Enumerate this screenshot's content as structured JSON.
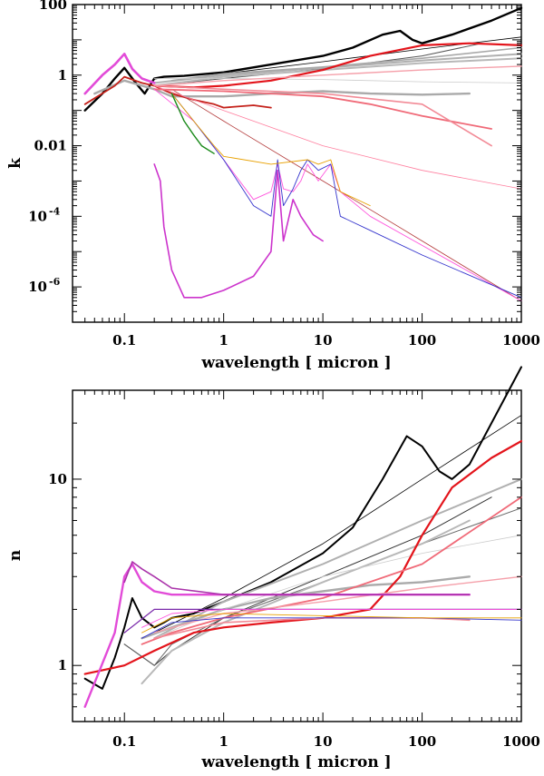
{
  "chart_data": [
    {
      "type": "line",
      "scale": {
        "x": "log",
        "y": "log"
      },
      "xlabel": "wavelength [ micron ]",
      "ylabel": "k",
      "xlim": [
        0.03,
        1000
      ],
      "ylim": [
        1e-07,
        100
      ],
      "xticks": [
        {
          "v": 0.1,
          "label": "0.1"
        },
        {
          "v": 1,
          "label": "1"
        },
        {
          "v": 10,
          "label": "10"
        },
        {
          "v": 100,
          "label": "100"
        },
        {
          "v": 1000,
          "label": "1000"
        }
      ],
      "yticks": [
        {
          "v": 100,
          "label": "100",
          "type": "plain"
        },
        {
          "v": 1,
          "label": "1",
          "type": "plain"
        },
        {
          "v": 0.01,
          "label": "0.01",
          "type": "plain"
        },
        {
          "v": 0.0001,
          "label": "10",
          "sup": "-4",
          "type": "pow"
        },
        {
          "v": 1e-06,
          "label": "10",
          "sup": "-6",
          "type": "pow"
        }
      ],
      "series": [
        {
          "color": "#000000",
          "width": 2.4,
          "x": [
            0.04,
            0.06,
            0.08,
            0.1,
            0.13,
            0.16,
            0.2,
            0.25,
            0.4,
            1,
            3,
            10,
            20,
            40,
            60,
            80,
            100,
            200,
            500,
            1000
          ],
          "y": [
            0.1,
            0.3,
            0.8,
            1.6,
            0.6,
            0.3,
            0.8,
            0.9,
            0.95,
            1.2,
            2,
            3.5,
            6,
            14,
            18,
            10,
            8,
            14,
            35,
            80
          ]
        },
        {
          "color": "#000000",
          "width": 0.8,
          "x": [
            0.2,
            1,
            10,
            100,
            1000
          ],
          "y": [
            0.6,
            1.1,
            2.4,
            5.5,
            12
          ]
        },
        {
          "color": "#555555",
          "width": 1,
          "x": [
            0.2,
            1,
            10,
            100,
            400
          ],
          "y": [
            0.5,
            0.8,
            1.5,
            3.5,
            8
          ]
        },
        {
          "color": "#aaaaaa",
          "width": 2.4,
          "x": [
            0.05,
            0.1,
            0.2,
            0.3,
            0.5,
            1,
            3,
            10,
            30,
            100,
            300
          ],
          "y": [
            0.3,
            0.7,
            0.4,
            0.25,
            0.25,
            0.25,
            0.3,
            0.35,
            0.3,
            0.28,
            0.3
          ]
        },
        {
          "color": "#b0b0b0",
          "width": 2,
          "x": [
            0.2,
            1,
            10,
            100,
            1000
          ],
          "y": [
            0.6,
            1,
            1.6,
            2.6,
            4
          ]
        },
        {
          "color": "#b8b8b8",
          "width": 2,
          "x": [
            0.2,
            1,
            10,
            100,
            1000
          ],
          "y": [
            0.5,
            0.9,
            1.4,
            2.2,
            3
          ]
        },
        {
          "color": "#a8a8a8",
          "width": 1.6,
          "x": [
            0.3,
            1,
            10,
            100,
            1000
          ],
          "y": [
            0.7,
            1.1,
            1.7,
            3,
            6
          ]
        },
        {
          "color": "#cccccc",
          "width": 0.8,
          "x": [
            0.2,
            1,
            10,
            100,
            1000
          ],
          "y": [
            0.8,
            0.8,
            0.75,
            0.65,
            0.6
          ]
        },
        {
          "color": "#e3141b",
          "width": 2.2,
          "x": [
            0.2,
            0.5,
            1,
            3,
            10,
            30,
            100,
            300,
            1000
          ],
          "y": [
            0.5,
            0.45,
            0.5,
            0.7,
            1.4,
            3.5,
            7,
            8,
            7
          ]
        },
        {
          "color": "#c4211a",
          "width": 1.8,
          "x": [
            0.04,
            0.08,
            0.1,
            0.15,
            0.2,
            0.3,
            0.5,
            0.8,
            1,
            2,
            3
          ],
          "y": [
            0.15,
            0.5,
            0.9,
            0.6,
            0.5,
            0.3,
            0.2,
            0.15,
            0.12,
            0.14,
            0.12
          ]
        },
        {
          "color": "#b33a3a",
          "width": 0.8,
          "x": [
            0.3,
            1,
            10,
            100,
            1000
          ],
          "y": [
            0.4,
            0.05,
            0.001,
            2e-05,
            4e-07
          ]
        },
        {
          "color": "#f06a78",
          "width": 1.8,
          "x": [
            0.2,
            1,
            3,
            10,
            30,
            100,
            500
          ],
          "y": [
            0.4,
            0.35,
            0.3,
            0.25,
            0.15,
            0.07,
            0.03
          ]
        },
        {
          "color": "#f28a96",
          "width": 1.6,
          "x": [
            0.2,
            1,
            10,
            100,
            500
          ],
          "y": [
            0.5,
            0.4,
            0.3,
            0.15,
            0.01
          ]
        },
        {
          "color": "#f5a0aa",
          "width": 1.4,
          "x": [
            0.2,
            1,
            10,
            100,
            1000
          ],
          "y": [
            0.5,
            0.7,
            1,
            1.4,
            1.8
          ]
        },
        {
          "color": "#ff7f9f",
          "width": 0.8,
          "x": [
            0.2,
            1,
            10,
            100,
            1000
          ],
          "y": [
            0.5,
            0.1,
            0.01,
            0.002,
            0.0006
          ]
        },
        {
          "color": "#e24bd8",
          "width": 2.6,
          "x": [
            0.04,
            0.06,
            0.08,
            0.1,
            0.12,
            0.15,
            0.2
          ],
          "y": [
            0.3,
            1,
            2,
            4,
            1.5,
            0.8,
            0.6
          ]
        },
        {
          "color": "#cc33cc",
          "width": 1.6,
          "x": [
            0.2,
            0.23,
            0.25,
            0.3,
            0.4,
            0.6,
            1,
            2,
            3,
            3.5,
            4,
            5,
            6,
            8,
            10
          ],
          "y": [
            0.003,
            0.001,
            5e-05,
            3e-06,
            5e-07,
            5e-07,
            8e-07,
            2e-06,
            1e-05,
            0.002,
            2e-05,
            0.0003,
            0.0001,
            3e-05,
            2e-05
          ]
        },
        {
          "color": "#ff55dd",
          "width": 0.9,
          "x": [
            0.2,
            0.5,
            1,
            2,
            3,
            3.5,
            4,
            5,
            6,
            7,
            9,
            12,
            15,
            30,
            100,
            1000
          ],
          "y": [
            0.4,
            0.05,
            0.004,
            0.0003,
            0.0005,
            0.003,
            0.0006,
            0.0005,
            0.001,
            0.003,
            0.001,
            0.003,
            0.0005,
            0.0001,
            1.5e-05,
            4e-07
          ]
        },
        {
          "color": "#3333cc",
          "width": 0.9,
          "x": [
            0.3,
            0.5,
            1,
            2,
            3,
            3.5,
            4,
            5,
            6,
            7,
            9,
            12,
            15,
            30,
            100,
            1000
          ],
          "y": [
            0.3,
            0.05,
            0.004,
            0.0002,
            0.0001,
            0.004,
            0.0002,
            0.0006,
            0.002,
            0.004,
            0.002,
            0.003,
            0.0001,
            4e-05,
            8e-06,
            5e-07
          ]
        },
        {
          "color": "#e8a000",
          "width": 0.9,
          "x": [
            0.3,
            0.5,
            0.8,
            1,
            3,
            7,
            9,
            12,
            15,
            30
          ],
          "y": [
            0.3,
            0.05,
            0.01,
            0.005,
            0.003,
            0.004,
            0.003,
            0.004,
            0.0005,
            0.0002
          ]
        },
        {
          "color": "#1a8a1a",
          "width": 1.4,
          "x": [
            0.3,
            0.4,
            0.5,
            0.6,
            0.8
          ],
          "y": [
            0.3,
            0.05,
            0.02,
            0.01,
            0.006
          ]
        }
      ]
    },
    {
      "type": "line",
      "scale": {
        "x": "log",
        "y": "log"
      },
      "xlabel": "wavelength [ micron ]",
      "ylabel": "n",
      "xlim": [
        0.03,
        1000
      ],
      "ylim": [
        0.5,
        30
      ],
      "xticks": [
        {
          "v": 0.1,
          "label": "0.1"
        },
        {
          "v": 1,
          "label": "1"
        },
        {
          "v": 10,
          "label": "10"
        },
        {
          "v": 100,
          "label": "100"
        },
        {
          "v": 1000,
          "label": "1000"
        }
      ],
      "yticks": [
        {
          "v": 1,
          "label": "1",
          "type": "plain"
        },
        {
          "v": 10,
          "label": "10",
          "type": "plain"
        }
      ],
      "series": [
        {
          "color": "#000000",
          "width": 2,
          "x": [
            0.04,
            0.06,
            0.08,
            0.1,
            0.12,
            0.15,
            0.2,
            0.25,
            0.3,
            0.5,
            1,
            3,
            10,
            20,
            40,
            70,
            100,
            150,
            200,
            300,
            500,
            1000
          ],
          "y": [
            0.85,
            0.75,
            1.1,
            1.6,
            2.3,
            1.8,
            1.6,
            1.7,
            1.8,
            1.9,
            2.2,
            2.8,
            4,
            5.5,
            10,
            17,
            15,
            11,
            10,
            12,
            20,
            40
          ]
        },
        {
          "color": "#000000",
          "width": 0.8,
          "x": [
            0.2,
            1,
            10,
            100,
            1000
          ],
          "y": [
            1.5,
            2.3,
            4.5,
            10,
            22
          ]
        },
        {
          "color": "#333333",
          "width": 1,
          "x": [
            0.1,
            0.2,
            0.3,
            1,
            10,
            100,
            500
          ],
          "y": [
            1.3,
            1,
            1.2,
            1.8,
            3,
            5,
            8
          ]
        },
        {
          "color": "#666666",
          "width": 1,
          "x": [
            0.1,
            0.2,
            0.3,
            1,
            10,
            100,
            1000
          ],
          "y": [
            1.3,
            1,
            1.3,
            1.8,
            2.8,
            4.5,
            7
          ]
        },
        {
          "color": "#aaaaaa",
          "width": 2.4,
          "x": [
            0.15,
            0.3,
            1,
            3,
            10,
            30,
            100,
            300
          ],
          "y": [
            1.4,
            1.6,
            2,
            2.3,
            2.5,
            2.7,
            2.8,
            3
          ]
        },
        {
          "color": "#b0b0b0",
          "width": 2,
          "x": [
            0.2,
            1,
            10,
            100,
            1000
          ],
          "y": [
            1.4,
            2.2,
            3.5,
            6,
            10
          ]
        },
        {
          "color": "#b8b8b8",
          "width": 2,
          "x": [
            0.15,
            0.3,
            1,
            10,
            100,
            300
          ],
          "y": [
            0.8,
            1.2,
            1.7,
            2.8,
            4.5,
            6
          ]
        },
        {
          "color": "#cccccc",
          "width": 0.8,
          "x": [
            0.2,
            1,
            10,
            100,
            1000
          ],
          "y": [
            1.4,
            2,
            3,
            4,
            5
          ]
        },
        {
          "color": "#e3141b",
          "width": 2.2,
          "x": [
            0.04,
            0.1,
            0.2,
            0.5,
            1,
            3,
            10,
            30,
            60,
            100,
            200,
            500,
            1000
          ],
          "y": [
            0.9,
            1,
            1.2,
            1.5,
            1.6,
            1.7,
            1.8,
            2,
            3,
            5,
            9,
            13,
            16
          ]
        },
        {
          "color": "#f06a78",
          "width": 1.8,
          "x": [
            0.15,
            0.3,
            1,
            10,
            100,
            1000
          ],
          "y": [
            1.3,
            1.5,
            1.8,
            2.3,
            3.5,
            8
          ]
        },
        {
          "color": "#f28a96",
          "width": 1.6,
          "x": [
            0.2,
            1,
            10,
            100,
            300
          ],
          "y": [
            1.4,
            1.7,
            1.8,
            1.8,
            1.75
          ]
        },
        {
          "color": "#f5a0aa",
          "width": 1.4,
          "x": [
            0.2,
            1,
            10,
            100,
            1000
          ],
          "y": [
            1.5,
            1.9,
            2.2,
            2.6,
            3
          ]
        },
        {
          "color": "#e24bd8",
          "width": 2.4,
          "x": [
            0.04,
            0.08,
            0.1,
            0.12,
            0.15,
            0.2,
            0.3,
            1,
            10,
            100,
            300
          ],
          "y": [
            0.6,
            1.5,
            3,
            3.5,
            2.8,
            2.5,
            2.4,
            2.4,
            2.4,
            2.4,
            2.4
          ]
        },
        {
          "color": "#aa33aa",
          "width": 1.6,
          "x": [
            0.1,
            0.12,
            0.15,
            0.2,
            0.3,
            1,
            10,
            100,
            300
          ],
          "y": [
            2.8,
            3.6,
            3.3,
            3,
            2.6,
            2.4,
            2.4,
            2.4,
            2.4
          ]
        },
        {
          "color": "#7a2aaa",
          "width": 1.2,
          "x": [
            0.1,
            0.2,
            1,
            10,
            100,
            1000
          ],
          "y": [
            1.5,
            2,
            2,
            2,
            2,
            2
          ]
        },
        {
          "color": "#ff55dd",
          "width": 0.9,
          "x": [
            0.15,
            0.3,
            1,
            10,
            100,
            1000
          ],
          "y": [
            1.6,
            1.9,
            2,
            2,
            2,
            2
          ]
        },
        {
          "color": "#3333cc",
          "width": 0.9,
          "x": [
            0.15,
            0.3,
            1,
            10,
            100,
            1000
          ],
          "y": [
            1.4,
            1.7,
            1.8,
            1.8,
            1.8,
            1.75
          ]
        },
        {
          "color": "#e8a000",
          "width": 0.9,
          "x": [
            0.15,
            0.3,
            1,
            10,
            100,
            1000
          ],
          "y": [
            1.5,
            1.8,
            1.9,
            1.85,
            1.8,
            1.8
          ]
        }
      ]
    }
  ]
}
